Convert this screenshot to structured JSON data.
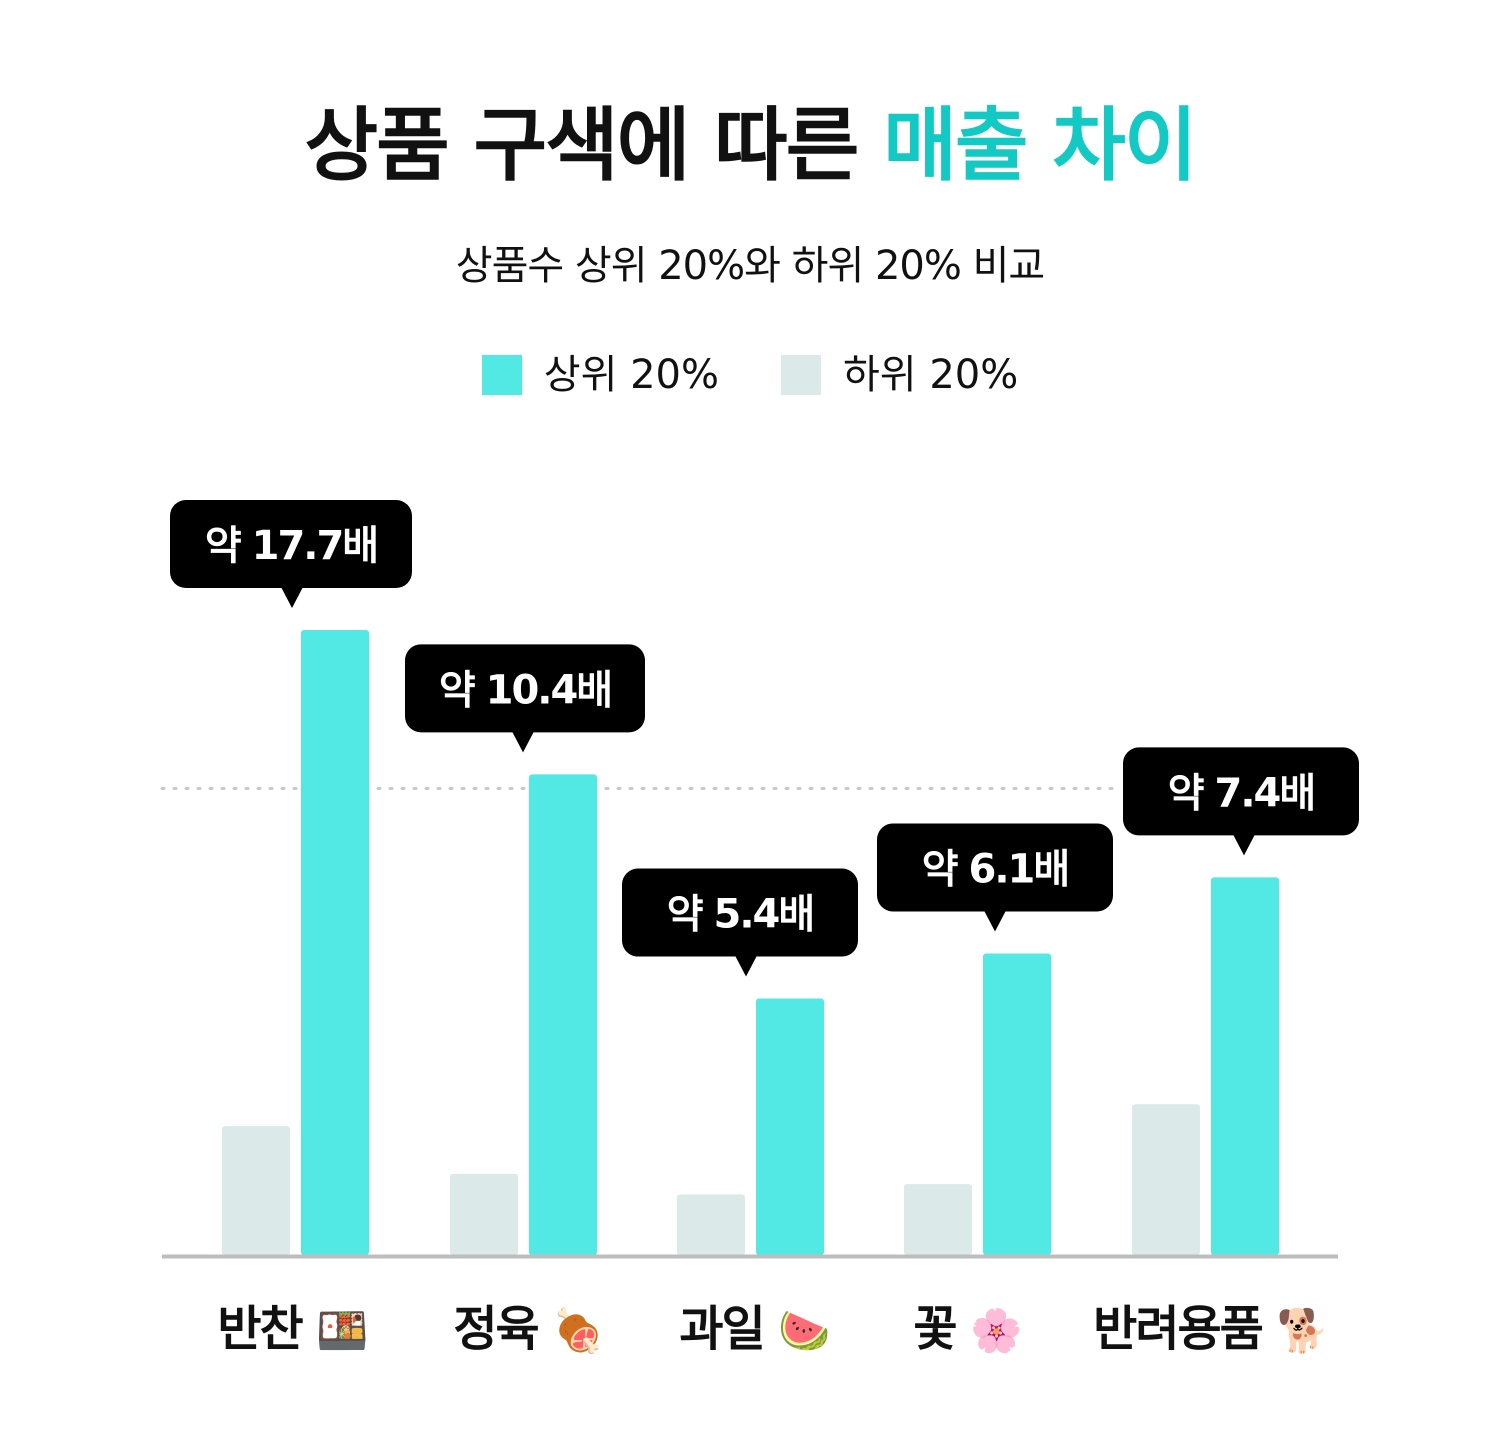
{
  "title": {
    "part1": "상품 구색에 따른 ",
    "part2": "매출 차이"
  },
  "subtitle": "상품수 상위 20%와 하위 20% 비교",
  "legend": [
    {
      "label": "상위 20%",
      "color": "#52e8e3"
    },
    {
      "label": "하위 20%",
      "color": "#dbe9e9"
    }
  ],
  "colors": {
    "accent_title": "#12c9c4",
    "top_bar": "#52e8e3",
    "bottom_bar": "#dbe9e9",
    "callout_bg": "#000000",
    "callout_text": "#ffffff",
    "baseline": "#bdbdbd",
    "reference_line": "#c8c8c8"
  },
  "chart_data": {
    "type": "bar",
    "categories": [
      "반찬",
      "정육",
      "과일",
      "꽃",
      "반려용품"
    ],
    "category_icons": [
      "bento-box-icon",
      "poultry-leg-icon",
      "watermelon-icon",
      "cherry-blossom-icon",
      "dog-icon"
    ],
    "category_emoji": [
      "🍱",
      "🍖",
      "🍉",
      "🌸",
      "🐕"
    ],
    "series": [
      {
        "name": "하위 20%",
        "values": [
          1.0,
          0.63,
          0.47,
          0.55,
          1.17
        ]
      },
      {
        "name": "상위 20%",
        "values": [
          4.85,
          3.73,
          1.99,
          2.34,
          2.93
        ]
      }
    ],
    "ratio_labels": [
      "약 17.7배",
      "약 10.4배",
      "약 5.4배",
      "약 6.1배",
      "약 7.4배"
    ],
    "reference_line_value": 3.62,
    "ylim": [
      0,
      4.85
    ],
    "grid": false,
    "legend_position": "top-center"
  }
}
